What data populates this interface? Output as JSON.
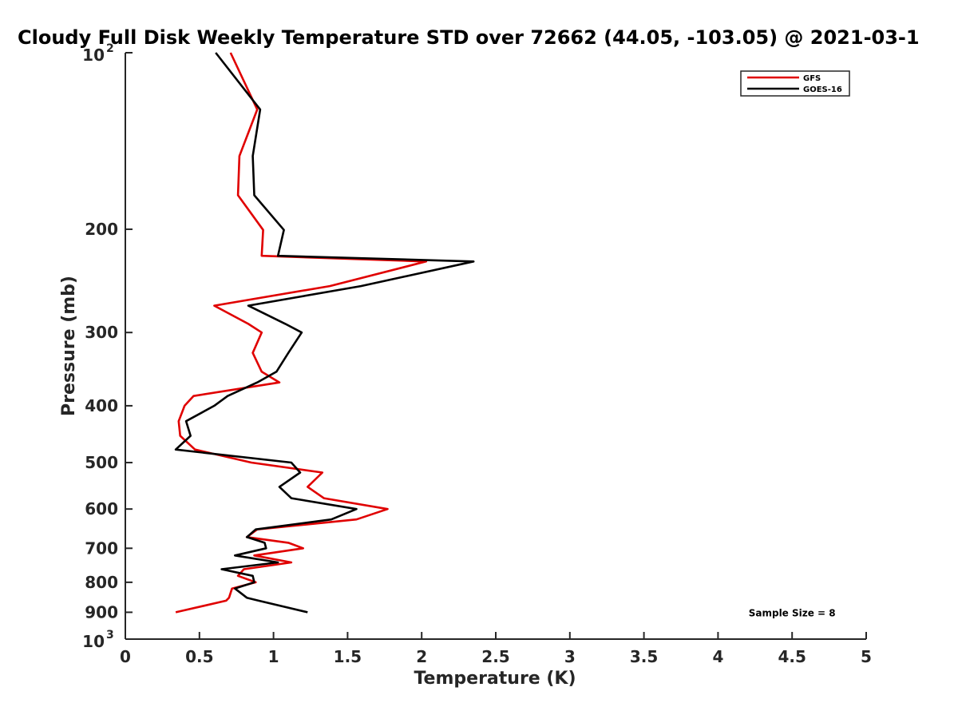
{
  "chart_data": {
    "type": "line",
    "title": "Cloudy Full Disk Weekly Temperature STD over 72662 (44.05, -103.05) @ 2021-03-1",
    "xlabel": "Temperature (K)",
    "ylabel": "Pressure (mb)",
    "xlim": [
      0,
      5
    ],
    "ylim": [
      1000,
      100
    ],
    "y_scale": "log",
    "y_reversed": true,
    "grid": false,
    "legend_position": "top-right",
    "x_ticks": [
      {
        "value": 0,
        "label": "0"
      },
      {
        "value": 0.5,
        "label": "0.5"
      },
      {
        "value": 1,
        "label": "1"
      },
      {
        "value": 1.5,
        "label": "1.5"
      },
      {
        "value": 2,
        "label": "2"
      },
      {
        "value": 2.5,
        "label": "2.5"
      },
      {
        "value": 3,
        "label": "3"
      },
      {
        "value": 3.5,
        "label": "3.5"
      },
      {
        "value": 4,
        "label": "4"
      },
      {
        "value": 4.5,
        "label": "4.5"
      },
      {
        "value": 5,
        "label": "5"
      }
    ],
    "y_ticks": [
      {
        "value": 100,
        "base": "10",
        "exp": "2"
      },
      {
        "value": 200,
        "label": "200"
      },
      {
        "value": 300,
        "label": "300"
      },
      {
        "value": 400,
        "label": "400"
      },
      {
        "value": 500,
        "label": "500"
      },
      {
        "value": 600,
        "label": "600"
      },
      {
        "value": 700,
        "label": "700"
      },
      {
        "value": 800,
        "label": "800"
      },
      {
        "value": 900,
        "label": "900"
      },
      {
        "value": 1000,
        "base": "10",
        "exp": "3"
      }
    ],
    "series": [
      {
        "name": "GFS",
        "color": "#e00000",
        "points": [
          [
            0.71,
            100
          ],
          [
            0.89,
            125
          ],
          [
            0.77,
            150
          ],
          [
            0.76,
            175
          ],
          [
            0.93,
            200.5
          ],
          [
            0.92,
            222
          ],
          [
            2.03,
            227
          ],
          [
            1.38,
            250
          ],
          [
            0.6,
            270
          ],
          [
            0.83,
            290
          ],
          [
            0.92,
            300
          ],
          [
            0.86,
            325
          ],
          [
            0.92,
            350
          ],
          [
            1.04,
            365
          ],
          [
            0.46,
            385
          ],
          [
            0.4,
            400
          ],
          [
            0.36,
            425
          ],
          [
            0.37,
            450
          ],
          [
            0.47,
            475
          ],
          [
            0.85,
            500
          ],
          [
            1.33,
            520
          ],
          [
            1.23,
            550
          ],
          [
            1.34,
            575
          ],
          [
            1.77,
            600
          ],
          [
            1.56,
            625
          ],
          [
            0.89,
            650
          ],
          [
            0.82,
            670
          ],
          [
            1.1,
            685
          ],
          [
            1.2,
            700
          ],
          [
            0.87,
            720
          ],
          [
            1.12,
            740
          ],
          [
            0.8,
            760
          ],
          [
            0.76,
            780
          ],
          [
            0.88,
            800
          ],
          [
            0.72,
            820
          ],
          [
            0.7,
            850
          ],
          [
            0.68,
            860
          ],
          [
            0.34,
            900
          ]
        ]
      },
      {
        "name": "GOES-16",
        "color": "#000000",
        "points": [
          [
            0.61,
            100
          ],
          [
            0.91,
            125
          ],
          [
            0.86,
            150
          ],
          [
            0.87,
            175
          ],
          [
            1.07,
            200.5
          ],
          [
            1.03,
            222
          ],
          [
            2.35,
            227
          ],
          [
            1.59,
            250
          ],
          [
            0.83,
            270
          ],
          [
            1.08,
            290
          ],
          [
            1.19,
            300
          ],
          [
            1.1,
            325
          ],
          [
            1.02,
            350
          ],
          [
            0.89,
            365
          ],
          [
            0.69,
            385
          ],
          [
            0.6,
            400
          ],
          [
            0.41,
            425
          ],
          [
            0.44,
            450
          ],
          [
            0.34,
            475
          ],
          [
            1.12,
            500
          ],
          [
            1.18,
            520
          ],
          [
            1.04,
            550
          ],
          [
            1.12,
            575
          ],
          [
            1.56,
            600
          ],
          [
            1.39,
            625
          ],
          [
            0.88,
            650
          ],
          [
            0.82,
            670
          ],
          [
            0.94,
            685
          ],
          [
            0.95,
            700
          ],
          [
            0.74,
            720
          ],
          [
            1.03,
            740
          ],
          [
            0.65,
            760
          ],
          [
            0.86,
            780
          ],
          [
            0.87,
            800
          ],
          [
            0.74,
            820
          ],
          [
            0.82,
            850
          ],
          [
            0.9,
            860
          ],
          [
            1.23,
            900
          ]
        ]
      }
    ],
    "annotations": [
      {
        "text": "Sample Size = 8",
        "x": 4.5,
        "y": 900
      }
    ]
  }
}
